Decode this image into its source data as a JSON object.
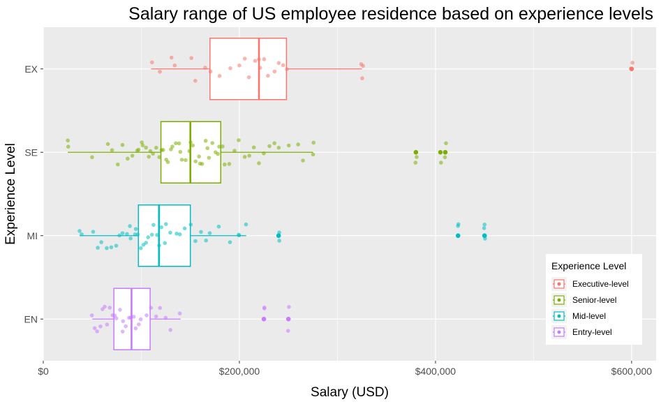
{
  "chart_data": {
    "type": "boxplot",
    "title": "Salary range of US employee residence based on experience levels",
    "xlabel": "Salary (USD)",
    "ylabel": "Experience Level",
    "xlim": [
      0,
      625000
    ],
    "xticks": [
      0,
      200000,
      400000,
      600000
    ],
    "xtick_labels": [
      "$0",
      "$200,000",
      "$400,000",
      "$600,000"
    ],
    "grid": true,
    "legend_title": "Experience Level",
    "legend_position": "bottom-right",
    "categories": [
      "EX",
      "SE",
      "MI",
      "EN"
    ],
    "series": [
      {
        "code": "EX",
        "name": "Executive-level",
        "color": "#F8766D",
        "stats": {
          "min": 110000,
          "q1": 170000,
          "median": 220000,
          "q3": 248000,
          "max": 325000
        },
        "outliers": [
          600000,
          600000
        ],
        "points": [
          110000,
          118000,
          130000,
          135000,
          150000,
          155000,
          165000,
          170000,
          180000,
          190000,
          200000,
          205000,
          210000,
          215000,
          220000,
          222000,
          225000,
          230000,
          235000,
          240000,
          245000,
          248000,
          325000,
          325000,
          325000
        ]
      },
      {
        "code": "SE",
        "name": "Senior-level",
        "color": "#7CAE00",
        "stats": {
          "min": 25000,
          "q1": 120000,
          "median": 150000,
          "q3": 181000,
          "max": 275000
        },
        "outliers": [
          380000,
          380000,
          405000,
          410000,
          410000
        ],
        "points": [
          25000,
          25000,
          50000,
          65000,
          70000,
          75000,
          80000,
          85000,
          90000,
          95000,
          98000,
          100000,
          102000,
          105000,
          108000,
          110000,
          112000,
          115000,
          118000,
          120000,
          122000,
          125000,
          128000,
          130000,
          132000,
          135000,
          138000,
          140000,
          142000,
          145000,
          148000,
          150000,
          152000,
          155000,
          158000,
          160000,
          162000,
          165000,
          168000,
          170000,
          172000,
          175000,
          178000,
          180000,
          182000,
          185000,
          190000,
          195000,
          200000,
          205000,
          210000,
          215000,
          220000,
          225000,
          230000,
          235000,
          240000,
          250000,
          260000,
          265000,
          275000,
          275000
        ]
      },
      {
        "code": "MI",
        "name": "Mid-level",
        "color": "#00BFC4",
        "stats": {
          "min": 37000,
          "q1": 97000,
          "median": 118000,
          "q3": 150000,
          "max": 207000
        },
        "outliers": [
          240000,
          240000,
          423000,
          423000,
          450000,
          450000,
          450000
        ],
        "points": [
          37000,
          40000,
          50000,
          55000,
          60000,
          65000,
          70000,
          75000,
          78000,
          80000,
          85000,
          88000,
          90000,
          93000,
          95000,
          97000,
          100000,
          103000,
          105000,
          108000,
          110000,
          112000,
          115000,
          118000,
          120000,
          123000,
          125000,
          130000,
          135000,
          140000,
          145000,
          150000,
          155000,
          160000,
          165000,
          170000,
          180000,
          190000,
          200000,
          200000,
          207000
        ]
      },
      {
        "code": "EN",
        "name": "Entry-level",
        "color": "#C77CFF",
        "stats": {
          "min": 50000,
          "q1": 72000,
          "median": 90000,
          "q3": 109000,
          "max": 140000
        },
        "outliers": [
          225000,
          225000,
          250000,
          250000
        ],
        "points": [
          50000,
          52000,
          55000,
          58000,
          60000,
          62000,
          65000,
          68000,
          70000,
          72000,
          75000,
          78000,
          80000,
          82000,
          85000,
          88000,
          90000,
          92000,
          95000,
          98000,
          100000,
          105000,
          109000,
          115000,
          120000,
          125000,
          130000,
          140000
        ]
      }
    ]
  }
}
